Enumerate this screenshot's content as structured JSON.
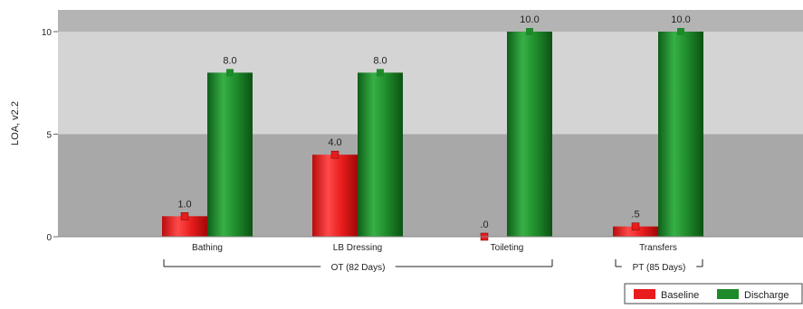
{
  "chart_data": {
    "type": "bar",
    "ylabel": "LOA, v2.2",
    "ylim": [
      0,
      10
    ],
    "yticks": [
      0,
      5,
      10
    ],
    "categories": [
      "Bathing",
      "LB Dressing",
      "Toileting",
      "Transfers"
    ],
    "series": [
      {
        "name": "Baseline",
        "values": [
          1.0,
          4.0,
          0.0,
          0.5
        ],
        "labels": [
          "1.0",
          "4.0",
          ".0",
          ".5"
        ],
        "color": "#e81c1c"
      },
      {
        "name": "Discharge",
        "values": [
          8.0,
          8.0,
          10.0,
          10.0
        ],
        "labels": [
          "8.0",
          "8.0",
          "10.0",
          "10.0"
        ],
        "color": "#1e8a2a"
      }
    ],
    "groups": [
      {
        "label": "OT (82 Days)",
        "categories": [
          "Bathing",
          "LB Dressing",
          "Toileting"
        ]
      },
      {
        "label": "PT (85 Days)",
        "categories": [
          "Transfers"
        ]
      }
    ],
    "legend": {
      "position": "bottom-right"
    },
    "background_bands": {
      "top": "#b4b4b4",
      "upper": "#d4d4d4",
      "lower": "#a8a8a8"
    }
  }
}
